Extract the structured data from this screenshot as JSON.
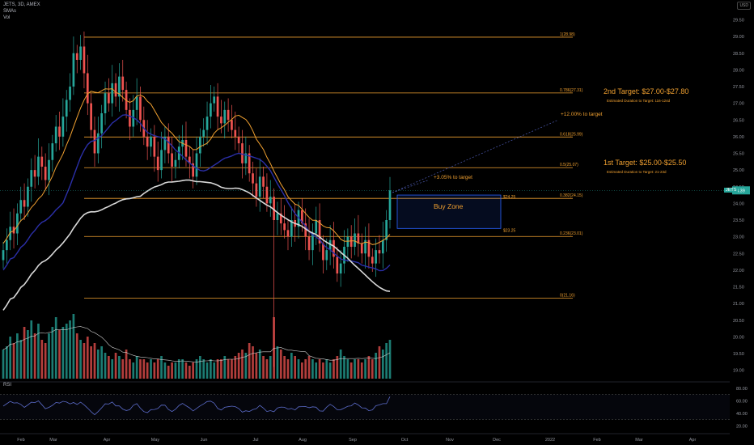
{
  "header": {
    "symbol_line": "JETS, 3D, AMEX",
    "indicator_1": "SMAs",
    "indicator_2": "Vol"
  },
  "currency": "USD",
  "colors": {
    "background": "#000000",
    "fib": "#f0a030",
    "up": "#26a69a",
    "down": "#ef5350",
    "sma_blue": "#1a237e",
    "sma_white": "#d8d8d8",
    "sma_orange": "#f0a030",
    "rsi": "#5b6bc9",
    "zone": "#2962ff"
  },
  "chart_data": {
    "type": "candlestick",
    "y_range": [
      18.7,
      29.9
    ],
    "y_ticks": [
      "29.50",
      "29.00",
      "28.50",
      "28.00",
      "27.50",
      "27.00",
      "26.50",
      "26.00",
      "25.50",
      "25.00",
      "24.50",
      "24.00",
      "23.50",
      "23.00",
      "22.50",
      "22.00",
      "21.50",
      "21.00",
      "20.50",
      "20.00",
      "19.50",
      "19.00"
    ],
    "x_ticks": [
      "Feb",
      "Mar",
      "Apr",
      "May",
      "Jun",
      "Jul",
      "Aug",
      "Sep",
      "Oct",
      "Nov",
      "Dec",
      "2022",
      "Feb",
      "Mar",
      "Apr"
    ],
    "last_price_label": "24.39",
    "ticker_badge": "JETS",
    "fib_levels": [
      {
        "label": "1(28.98)",
        "value": 28.98
      },
      {
        "label": "0.786(27.31)",
        "value": 27.31
      },
      {
        "label": "0.618(25.99)",
        "value": 25.99
      },
      {
        "label": "0.5(25.07)",
        "value": 25.07
      },
      {
        "label": "0.382(24.15)",
        "value": 24.15
      },
      {
        "label": "0.236(23.01)",
        "value": 23.01
      },
      {
        "label": "0(21.16)",
        "value": 21.16
      }
    ],
    "buy_zone": {
      "label": "Buy Zone",
      "top_label": "$24.25",
      "bottom_label": "$23.25",
      "top": 24.25,
      "bottom": 23.25
    },
    "annotations": {
      "to_target_1": "+3.05% to target",
      "to_target_2": "+12.00% to target"
    },
    "targets": [
      {
        "title": "2nd Target: $27.00-$27.80",
        "subtitle": "Estimated Duration to Target: 116-124d"
      },
      {
        "title": "1st Target: $25.00-$25.50",
        "subtitle": "Estimated Duration to Target: 21-23d"
      }
    ],
    "rsi": {
      "label": "RSI",
      "ticks": [
        "80.00",
        "60.00",
        "40.00",
        "20.00"
      ],
      "last": 66.5
    },
    "closes": [
      22.6,
      22.9,
      23.3,
      23.1,
      23.7,
      24.1,
      23.9,
      24.5,
      25.0,
      24.8,
      25.4,
      25.1,
      24.7,
      25.3,
      25.8,
      26.3,
      26.0,
      26.6,
      27.1,
      27.5,
      28.5,
      28.3,
      28.7,
      27.9,
      27.0,
      26.2,
      25.5,
      26.1,
      26.7,
      27.3,
      27.0,
      27.6,
      27.2,
      27.8,
      27.4,
      26.8,
      26.3,
      26.8,
      27.2,
      26.5,
      26.0,
      25.7,
      26.0,
      25.4,
      25.0,
      25.6,
      26.0,
      25.5,
      25.1,
      25.3,
      25.7,
      25.9,
      25.4,
      25.2,
      24.8,
      25.5,
      26.0,
      26.2,
      26.6,
      27.0,
      27.2,
      26.6,
      26.4,
      26.8,
      26.5,
      26.2,
      26.0,
      25.8,
      25.2,
      25.5,
      24.9,
      24.6,
      24.2,
      24.8,
      24.5,
      24.0,
      24.2,
      23.5,
      23.7,
      23.4,
      23.2,
      23.0,
      23.5,
      23.3,
      23.8,
      23.4,
      23.0,
      22.6,
      23.1,
      23.5,
      22.8,
      22.3,
      22.6,
      22.9,
      22.4,
      21.9,
      22.2,
      22.7,
      23.0,
      22.7,
      23.1,
      22.8,
      22.5,
      22.9,
      22.4,
      22.2,
      22.6,
      22.5,
      22.9,
      23.5,
      24.39
    ],
    "volumes": [
      0.45,
      0.5,
      0.65,
      0.55,
      0.7,
      0.6,
      0.8,
      0.75,
      0.9,
      0.7,
      0.85,
      0.6,
      0.55,
      0.7,
      0.8,
      0.95,
      0.75,
      0.8,
      0.85,
      0.9,
      1.0,
      0.7,
      0.6,
      0.55,
      0.65,
      0.5,
      0.55,
      0.45,
      0.5,
      0.4,
      0.35,
      0.3,
      0.4,
      0.35,
      0.3,
      0.45,
      0.3,
      0.25,
      0.35,
      0.3,
      0.3,
      0.25,
      0.3,
      0.25,
      0.3,
      0.35,
      0.25,
      0.2,
      0.25,
      0.25,
      0.3,
      0.3,
      0.25,
      0.2,
      0.25,
      0.3,
      0.35,
      0.3,
      0.25,
      0.3,
      0.25,
      0.3,
      0.3,
      0.35,
      0.3,
      0.3,
      0.35,
      0.4,
      0.45,
      0.4,
      0.55,
      0.5,
      0.4,
      0.45,
      0.35,
      0.3,
      0.35,
      0.95,
      0.5,
      0.45,
      0.35,
      0.3,
      0.4,
      0.35,
      0.3,
      0.25,
      0.3,
      0.35,
      0.3,
      0.25,
      0.3,
      0.25,
      0.3,
      0.25,
      0.3,
      0.35,
      0.45,
      0.35,
      0.3,
      0.25,
      0.3,
      0.3,
      0.25,
      0.3,
      0.35,
      0.3,
      0.4,
      0.5,
      0.45,
      0.55,
      0.6
    ]
  }
}
